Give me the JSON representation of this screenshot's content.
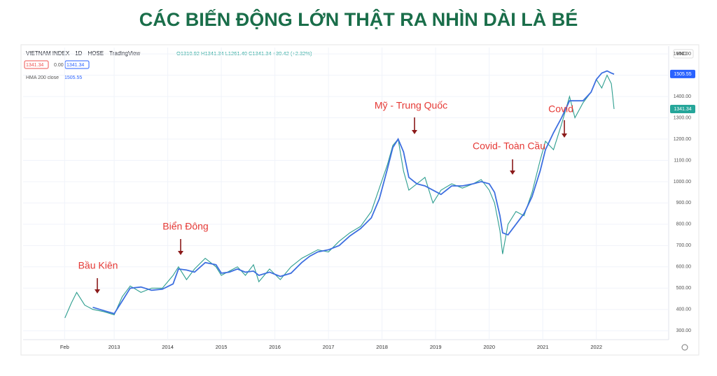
{
  "title": "CÁC BIẾN ĐỘNG LỚN THẬT RA NHÌN DÀI LÀ BÉ",
  "chart_data": {
    "type": "line",
    "symbol": [
      "VIETNAM INDEX",
      "1D",
      "HOSE",
      "TradingView"
    ],
    "ohlc": "O1310.92 H1341.34 L1261.40 C1341.34 +30.42 (+2.32%)",
    "header_badges": [
      "1341.34",
      "0.00",
      "1341.34"
    ],
    "hma_value": "1505.55",
    "currency": "VND",
    "x": [
      2012.08,
      2012.2,
      2012.3,
      2012.45,
      2012.6,
      2012.8,
      2013.0,
      2013.15,
      2013.3,
      2013.5,
      2013.7,
      2013.9,
      2014.1,
      2014.2,
      2014.35,
      2014.5,
      2014.7,
      2014.9,
      2015.0,
      2015.15,
      2015.3,
      2015.45,
      2015.6,
      2015.7,
      2015.9,
      2016.1,
      2016.3,
      2016.5,
      2016.65,
      2016.8,
      2017.0,
      2017.2,
      2017.4,
      2017.6,
      2017.8,
      2017.95,
      2018.1,
      2018.2,
      2018.3,
      2018.4,
      2018.5,
      2018.65,
      2018.8,
      2018.95,
      2019.1,
      2019.3,
      2019.5,
      2019.7,
      2019.85,
      2020.0,
      2020.1,
      2020.2,
      2020.25,
      2020.35,
      2020.5,
      2020.65,
      2020.8,
      2020.95,
      2021.05,
      2021.2,
      2021.35,
      2021.5,
      2021.6,
      2021.75,
      2021.9,
      2022.0,
      2022.1,
      2022.2,
      2022.28,
      2022.33
    ],
    "series": [
      {
        "name": "VIETNAM INDEX",
        "color": "#2e9e8f",
        "values": [
          360,
          430,
          480,
          420,
          400,
          390,
          375,
          460,
          510,
          480,
          500,
          500,
          560,
          600,
          540,
          590,
          640,
          600,
          560,
          580,
          600,
          560,
          610,
          530,
          590,
          540,
          600,
          640,
          660,
          680,
          670,
          720,
          760,
          790,
          860,
          970,
          1080,
          1170,
          1200,
          1050,
          960,
          990,
          1020,
          900,
          960,
          990,
          970,
          990,
          1010,
          960,
          900,
          770,
          660,
          800,
          860,
          840,
          950,
          1100,
          1190,
          1150,
          1270,
          1400,
          1300,
          1370,
          1420,
          1480,
          1440,
          1500,
          1460,
          1341
        ]
      },
      {
        "name": "HMA 200 close",
        "color": "#3d6fe0",
        "values": [
          null,
          null,
          null,
          null,
          410,
          395,
          380,
          440,
          500,
          505,
          490,
          495,
          520,
          590,
          585,
          575,
          620,
          610,
          570,
          575,
          590,
          575,
          580,
          560,
          575,
          555,
          570,
          620,
          650,
          670,
          680,
          700,
          745,
          780,
          830,
          920,
          1060,
          1160,
          1200,
          1140,
          1020,
          990,
          980,
          960,
          940,
          980,
          980,
          990,
          1000,
          990,
          950,
          840,
          760,
          750,
          800,
          850,
          930,
          1050,
          1150,
          1230,
          1300,
          1380,
          1380,
          1380,
          1420,
          1480,
          1510,
          1520,
          1510,
          1505
        ]
      }
    ],
    "price_badges": [
      {
        "value": 1505.55,
        "color": "#2962ff"
      },
      {
        "value": 1341.34,
        "color": "#26a69a"
      }
    ],
    "xlim": [
      2011.3,
      2023.35
    ],
    "xticks": [
      {
        "value": 2012.075,
        "label": "Feb"
      },
      2013,
      2014,
      2015,
      2016,
      2017,
      2018,
      2019,
      2020,
      2021,
      2022
    ],
    "ylim": [
      258,
      1630
    ],
    "yticks": [
      {
        "value": 300,
        "label": "300.00"
      },
      {
        "value": 400,
        "label": "400.00"
      },
      {
        "value": 500,
        "label": "500.00"
      },
      {
        "value": 600,
        "label": "600.00"
      },
      {
        "value": 700,
        "label": "700.00"
      },
      {
        "value": 800,
        "label": "800.00"
      },
      {
        "value": 900,
        "label": "900.00"
      },
      {
        "value": 1000,
        "label": "1000.00"
      },
      {
        "value": 1100,
        "label": "1100.00"
      },
      {
        "value": 1200,
        "label": "1200.00"
      },
      {
        "value": 1300,
        "label": "1300.00"
      },
      {
        "value": 1400,
        "label": "1400.00"
      },
      {
        "value": 1500,
        "label": "1500.00"
      },
      {
        "value": 1600,
        "label": "1600.00"
      }
    ],
    "grid": true,
    "annotations": [
      "Bầu Kiên",
      "Biển Đông",
      "Mỹ - Trung Quốc",
      "Covid- Toàn Cầu",
      "Covid"
    ],
    "annotation_color": "#e53935"
  }
}
